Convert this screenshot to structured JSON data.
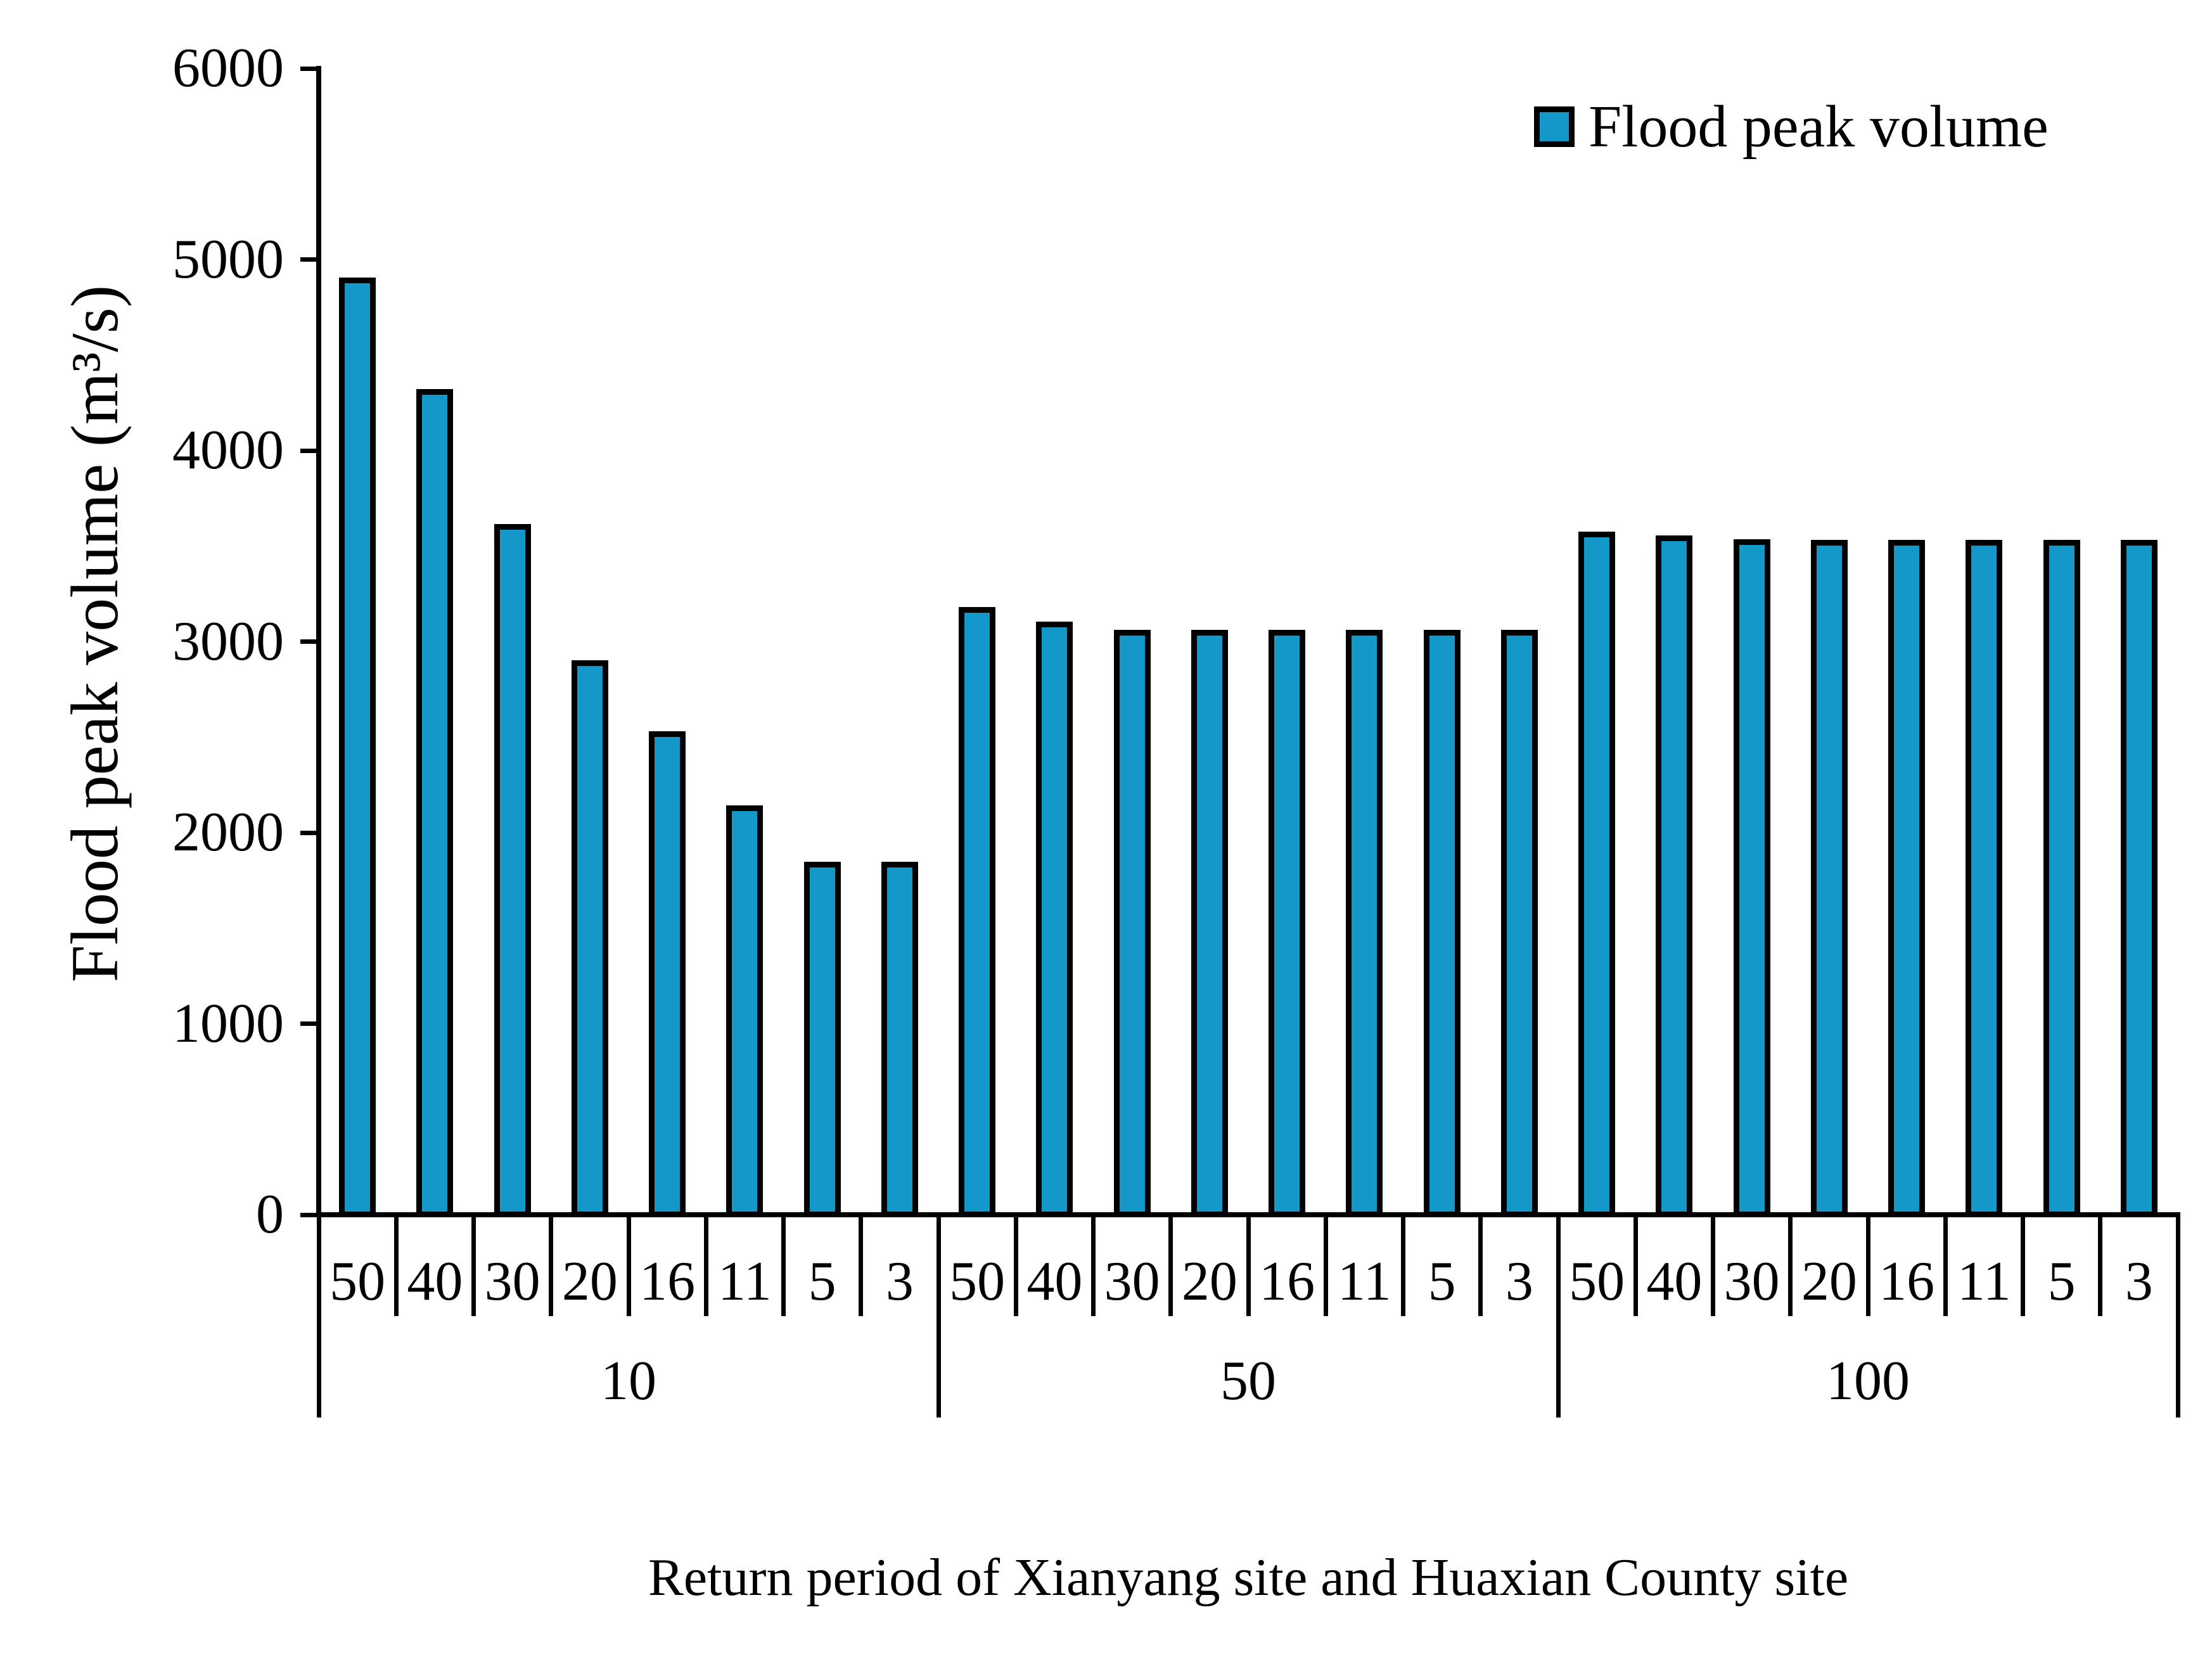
{
  "legend": {
    "label": "Flood peak volume",
    "marker_color": "#1497C9"
  },
  "y_axis": {
    "title": "Flood peak volume (m³/s)",
    "tick_labels": [
      "6000",
      "5000",
      "4000",
      "3000",
      "2000",
      "1000",
      "0"
    ]
  },
  "x_axis": {
    "title": "Return period of Xianyang site and Huaxian County site"
  },
  "chart_data": {
    "type": "bar",
    "title": "",
    "xlabel": "Return period of Xianyang site and Huaxian County site",
    "ylabel": "Flood peak volume (m³/s)",
    "ylim": [
      0,
      6000
    ],
    "y_tick_step": 1000,
    "grid": false,
    "legend_position": "top-right",
    "bar_color": "#1497C9",
    "bar_outline_color": "#000000",
    "series_name": "Flood peak volume",
    "groups": [
      {
        "label": "10",
        "categories": [
          "50",
          "40",
          "30",
          "20",
          "16",
          "11",
          "5",
          "3"
        ],
        "values": [
          4920,
          4335,
          3630,
          2915,
          2545,
          2155,
          1860,
          1860
        ]
      },
      {
        "label": "50",
        "categories": [
          "50",
          "40",
          "30",
          "20",
          "16",
          "11",
          "5",
          "3"
        ],
        "values": [
          3195,
          3120,
          3075,
          3075,
          3075,
          3075,
          3075,
          3075
        ]
      },
      {
        "label": "100",
        "categories": [
          "50",
          "40",
          "30",
          "20",
          "16",
          "11",
          "5",
          "3"
        ],
        "values": [
          3590,
          3570,
          3550,
          3545,
          3545,
          3545,
          3545,
          3545
        ]
      }
    ]
  }
}
